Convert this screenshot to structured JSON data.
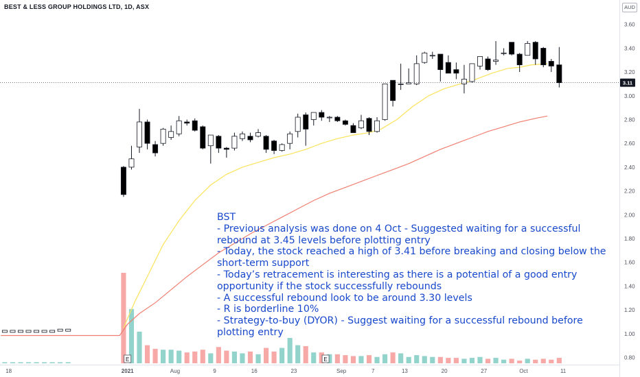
{
  "header": {
    "title": "BEST & LESS GROUP HOLDINGS LTD, 1D, ASX",
    "currency": "AUD"
  },
  "annotation": {
    "lines": [
      "BST",
      "- Previous analysis was done on 4 Oct - Suggested waiting for a successful rebound at 3.45 levels before plotting entry",
      "- Today, the stock reached a high of 3.41 before breaking and closing below the short-term support",
      "- Today’s retracement is interesting as there is a potential of a good entry opportunity if the stock successfully rebounds",
      "- A successful rebound look to be around 3.30 levels",
      "- R is borderline 10%",
      "- Strategy-to-buy (DYOR) - Suggest waiting for a successful rebound before plotting entry"
    ]
  },
  "chart_data": {
    "type": "candlestick",
    "y_axis": {
      "ticks": [
        3.6,
        3.4,
        3.2,
        3.0,
        2.8,
        2.6,
        2.4,
        2.2,
        2.0,
        1.8,
        1.6,
        1.4,
        1.2,
        1.0,
        0.8
      ],
      "tick_labels": [
        "3.60",
        "3.40",
        "3.20",
        "3.00",
        "2.80",
        "2.60",
        "2.40",
        "2.20",
        "2.00",
        "1.80",
        "1.60",
        "1.40",
        "1.20",
        "1.00",
        "0.80"
      ],
      "range": [
        0.74,
        3.69
      ],
      "side": "right"
    },
    "x_axis": {
      "labels": [
        {
          "text": "18",
          "bar": -8.5
        },
        {
          "text": "2021",
          "bar": 6.5
        },
        {
          "text": "Aug",
          "bar": 12.5
        },
        {
          "text": "9",
          "bar": 17.5
        },
        {
          "text": "16",
          "bar": 22.5
        },
        {
          "text": "23",
          "bar": 27.5
        },
        {
          "text": "Sep",
          "bar": 33.5
        },
        {
          "text": "7",
          "bar": 37.5
        },
        {
          "text": "13",
          "bar": 41.5
        },
        {
          "text": "20",
          "bar": 46.5
        },
        {
          "text": "27",
          "bar": 51.5
        },
        {
          "text": "Oct",
          "bar": 56.5
        },
        {
          "text": "11",
          "bar": 61.5
        }
      ],
      "bar_range": [
        -9.6,
        68.6
      ]
    },
    "current_price": {
      "value": 3.11,
      "label": "3.11",
      "color": "#131722"
    },
    "pre_listing": {
      "values": [
        1.02,
        1.02,
        1.02,
        1.02,
        1.02,
        1.02,
        1.02,
        1.03,
        1.03
      ],
      "volumes": [
        0.012,
        0.012,
        0.012,
        0.012,
        0.012,
        0.012,
        0.012,
        0.012,
        0.012
      ]
    },
    "candles": [
      {
        "o": 2.4,
        "h": 2.41,
        "c": 2.17,
        "l": 2.15
      },
      {
        "o": 2.4,
        "h": 2.58,
        "c": 2.47,
        "l": 2.38
      },
      {
        "o": 2.57,
        "h": 2.89,
        "c": 2.78,
        "l": 2.52
      },
      {
        "o": 2.78,
        "h": 2.8,
        "c": 2.6,
        "l": 2.55
      },
      {
        "o": 2.59,
        "h": 2.62,
        "c": 2.52,
        "l": 2.49
      },
      {
        "o": 2.6,
        "h": 2.73,
        "c": 2.72,
        "l": 2.58
      },
      {
        "o": 2.65,
        "h": 2.75,
        "c": 2.7,
        "l": 2.63
      },
      {
        "o": 2.68,
        "h": 2.83,
        "c": 2.79,
        "l": 2.66
      },
      {
        "o": 2.78,
        "h": 2.8,
        "c": 2.77,
        "l": 2.75
      },
      {
        "o": 2.79,
        "h": 2.81,
        "c": 2.71,
        "l": 2.7
      },
      {
        "o": 2.74,
        "h": 2.75,
        "c": 2.56,
        "l": 2.55
      },
      {
        "o": 2.58,
        "h": 2.66,
        "c": 2.67,
        "l": 2.43
      },
      {
        "o": 2.66,
        "h": 2.67,
        "c": 2.56,
        "l": 2.52
      },
      {
        "o": 2.56,
        "h": 2.57,
        "c": 2.55,
        "l": 2.48
      },
      {
        "o": 2.56,
        "h": 2.69,
        "c": 2.66,
        "l": 2.54
      },
      {
        "o": 2.64,
        "h": 2.7,
        "c": 2.68,
        "l": 2.62
      },
      {
        "o": 2.66,
        "h": 2.69,
        "c": 2.63,
        "l": 2.61
      },
      {
        "o": 2.66,
        "h": 2.72,
        "c": 2.69,
        "l": 2.65
      },
      {
        "o": 2.66,
        "h": 2.67,
        "c": 2.55,
        "l": 2.52
      },
      {
        "o": 2.62,
        "h": 2.63,
        "c": 2.54,
        "l": 2.51
      },
      {
        "o": 2.54,
        "h": 2.6,
        "c": 2.59,
        "l": 2.53
      },
      {
        "o": 2.6,
        "h": 2.7,
        "c": 2.68,
        "l": 2.55
      },
      {
        "o": 2.7,
        "h": 2.85,
        "c": 2.82,
        "l": 2.65
      },
      {
        "o": 2.84,
        "h": 2.86,
        "c": 2.72,
        "l": 2.58
      },
      {
        "o": 2.8,
        "h": 2.86,
        "c": 2.86,
        "l": 2.75
      },
      {
        "o": 2.86,
        "h": 2.88,
        "c": 2.82,
        "l": 2.79
      },
      {
        "o": 2.82,
        "h": 2.83,
        "c": 2.82,
        "l": 2.78
      },
      {
        "o": 2.82,
        "h": 2.83,
        "c": 2.79,
        "l": 2.78
      },
      {
        "o": 2.79,
        "h": 2.8,
        "c": 2.76,
        "l": 2.75
      },
      {
        "o": 2.75,
        "h": 2.77,
        "c": 2.69,
        "l": 2.69
      },
      {
        "o": 2.73,
        "h": 2.84,
        "c": 2.79,
        "l": 2.72
      },
      {
        "o": 2.81,
        "h": 2.82,
        "c": 2.7,
        "l": 2.67
      },
      {
        "o": 2.7,
        "h": 2.82,
        "c": 2.79,
        "l": 2.69
      },
      {
        "o": 2.8,
        "h": 3.1,
        "c": 3.1,
        "l": 2.79
      },
      {
        "o": 3.13,
        "h": 3.13,
        "c": 2.96,
        "l": 2.91
      },
      {
        "o": 3.1,
        "h": 3.27,
        "c": 3.1,
        "l": 3.05
      },
      {
        "o": 3.1,
        "h": 3.23,
        "c": 3.11,
        "l": 3.1
      },
      {
        "o": 3.1,
        "h": 3.34,
        "c": 3.27,
        "l": 3.09
      },
      {
        "o": 3.28,
        "h": 3.37,
        "c": 3.36,
        "l": 3.27
      },
      {
        "o": 3.34,
        "h": 3.37,
        "c": 3.34,
        "l": 3.31
      },
      {
        "o": 3.35,
        "h": 3.35,
        "c": 3.22,
        "l": 3.12
      },
      {
        "o": 3.28,
        "h": 3.34,
        "c": 3.19,
        "l": 3.19
      },
      {
        "o": 3.22,
        "h": 3.28,
        "c": 3.19,
        "l": 3.14
      },
      {
        "o": 3.1,
        "h": 3.26,
        "c": 3.14,
        "l": 3.02
      },
      {
        "o": 3.12,
        "h": 3.27,
        "c": 3.27,
        "l": 3.11
      },
      {
        "o": 3.25,
        "h": 3.33,
        "c": 3.33,
        "l": 3.22
      },
      {
        "o": 3.31,
        "h": 3.33,
        "c": 3.22,
        "l": 3.21
      },
      {
        "o": 3.29,
        "h": 3.46,
        "c": 3.3,
        "l": 3.26
      },
      {
        "o": 3.36,
        "h": 3.4,
        "c": 3.36,
        "l": 3.34
      },
      {
        "o": 3.45,
        "h": 3.45,
        "c": 3.35,
        "l": 3.34
      },
      {
        "o": 3.35,
        "h": 3.36,
        "c": 3.26,
        "l": 3.2
      },
      {
        "o": 3.34,
        "h": 3.46,
        "c": 3.44,
        "l": 3.34
      },
      {
        "o": 3.45,
        "h": 3.46,
        "c": 3.31,
        "l": 3.26
      },
      {
        "o": 3.4,
        "h": 3.41,
        "c": 3.26,
        "l": 3.24
      },
      {
        "o": 3.29,
        "h": 3.31,
        "c": 3.25,
        "l": 3.2
      },
      {
        "o": 3.26,
        "h": 3.41,
        "c": 3.11,
        "l": 3.07
      }
    ],
    "volumes": [
      1.0,
      0.6,
      0.35,
      0.2,
      0.16,
      0.15,
      0.15,
      0.14,
      0.12,
      0.13,
      0.15,
      0.11,
      0.18,
      0.14,
      0.13,
      0.11,
      0.13,
      0.1,
      0.17,
      0.13,
      0.17,
      0.28,
      0.2,
      0.19,
      0.12,
      0.12,
      0.1,
      0.1,
      0.09,
      0.08,
      0.08,
      0.09,
      0.07,
      0.1,
      0.12,
      0.11,
      0.07,
      0.09,
      0.08,
      0.07,
      0.07,
      0.06,
      0.06,
      0.05,
      0.06,
      0.07,
      0.05,
      0.06,
      0.04,
      0.05,
      0.03,
      0.05,
      0.04,
      0.05,
      0.04,
      0.06
    ],
    "volume_scale_max": 1.0,
    "ma_short": {
      "color": "#fbe35a",
      "points": [
        [
          6.0,
          1.05
        ],
        [
          7.5,
          1.28
        ],
        [
          9,
          1.48
        ],
        [
          11,
          1.75
        ],
        [
          13,
          1.95
        ],
        [
          15,
          2.12
        ],
        [
          17,
          2.25
        ],
        [
          19,
          2.34
        ],
        [
          21,
          2.4
        ],
        [
          23,
          2.44
        ],
        [
          25,
          2.48
        ],
        [
          27,
          2.51
        ],
        [
          29,
          2.55
        ],
        [
          31,
          2.6
        ],
        [
          33,
          2.64
        ],
        [
          35,
          2.67
        ],
        [
          37,
          2.69
        ],
        [
          38.5,
          2.72
        ],
        [
          40.5,
          2.8
        ],
        [
          42.5,
          2.91
        ],
        [
          44.5,
          3.0
        ],
        [
          46.5,
          3.06
        ],
        [
          48.5,
          3.1
        ],
        [
          50.5,
          3.14
        ],
        [
          52.5,
          3.19
        ],
        [
          54.5,
          3.23
        ],
        [
          56.0,
          3.24
        ],
        [
          57.5,
          3.26
        ],
        [
          59.5,
          3.27
        ]
      ]
    },
    "ma_long": {
      "color": "#f07e70",
      "points": [
        [
          -9.5,
          0.985
        ],
        [
          5.5,
          0.985
        ],
        [
          6.5,
          1.08
        ],
        [
          8,
          1.17
        ],
        [
          10,
          1.26
        ],
        [
          12,
          1.37
        ],
        [
          14,
          1.48
        ],
        [
          16,
          1.58
        ],
        [
          18,
          1.68
        ],
        [
          20,
          1.76
        ],
        [
          22,
          1.84
        ],
        [
          24,
          1.91
        ],
        [
          26,
          1.98
        ],
        [
          28,
          2.05
        ],
        [
          30,
          2.12
        ],
        [
          32,
          2.18
        ],
        [
          34,
          2.23
        ],
        [
          36,
          2.28
        ],
        [
          38,
          2.33
        ],
        [
          40,
          2.38
        ],
        [
          42,
          2.43
        ],
        [
          44,
          2.49
        ],
        [
          46,
          2.55
        ],
        [
          48,
          2.6
        ],
        [
          50,
          2.65
        ],
        [
          52,
          2.7
        ],
        [
          54,
          2.74
        ],
        [
          56,
          2.78
        ],
        [
          58,
          2.81
        ],
        [
          59.5,
          2.83
        ]
      ]
    },
    "earnings_markers": [
      {
        "label": "E",
        "bar": 6.5
      },
      {
        "label": "E",
        "bar": 31.5
      }
    ],
    "colors": {
      "up_border": "#131722",
      "up_fill": "#ffffff",
      "down": "#000000",
      "vol_up": "#92d3cc",
      "vol_down": "#f7a9a7"
    }
  }
}
